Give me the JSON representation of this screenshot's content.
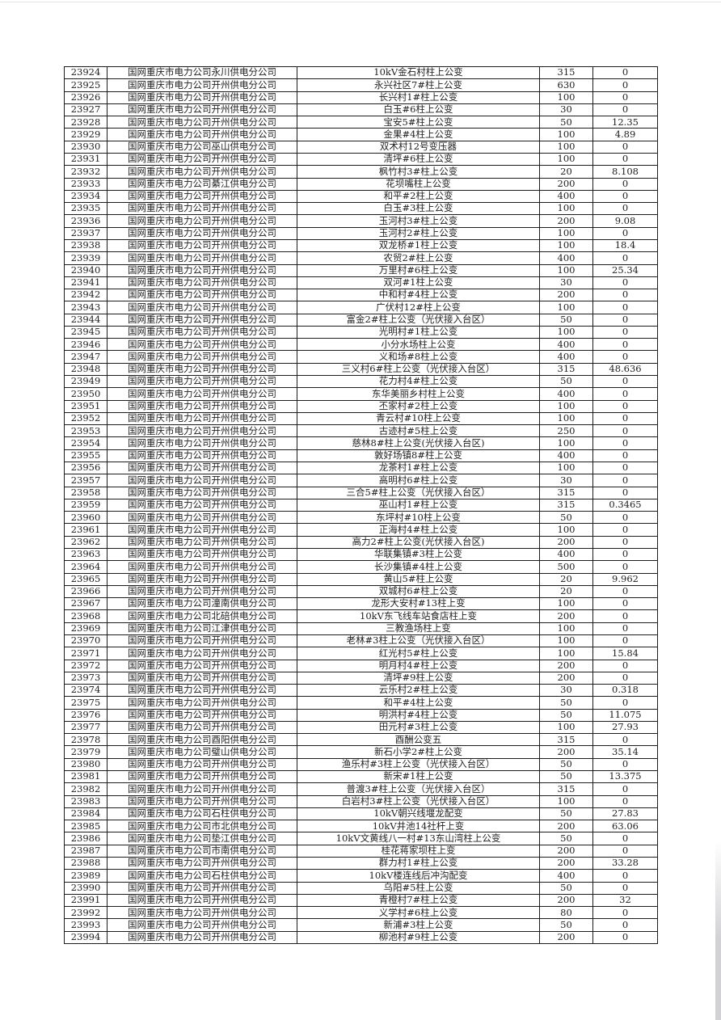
{
  "page": {
    "background_color": "#ffffff",
    "text_color": "#1f1f1f",
    "border_color": "#1c1c1c"
  },
  "table": {
    "rows": [
      [
        "23924",
        "国网重庆市电力公司永川供电分公司",
        "10kV金石村柱上公变",
        "315",
        "0"
      ],
      [
        "23925",
        "国网重庆市电力公司开州供电分公司",
        "永兴社区7#柱上公变",
        "630",
        "0"
      ],
      [
        "23926",
        "国网重庆市电力公司开州供电分公司",
        "长兴村1#柱上公变",
        "100",
        "0"
      ],
      [
        "23927",
        "国网重庆市电力公司开州供电分公司",
        "白玉#6柱上公变",
        "30",
        "0"
      ],
      [
        "23928",
        "国网重庆市电力公司开州供电分公司",
        "宝安5#柱上公变",
        "50",
        "12.35"
      ],
      [
        "23929",
        "国网重庆市电力公司开州供电分公司",
        "金果#4柱上公变",
        "100",
        "4.89"
      ],
      [
        "23930",
        "国网重庆市电力公司巫山供电分公司",
        "双术村12号变压器",
        "100",
        "0"
      ],
      [
        "23931",
        "国网重庆市电力公司开州供电分公司",
        "清坪#6柱上公变",
        "100",
        "0"
      ],
      [
        "23932",
        "国网重庆市电力公司开州供电分公司",
        "枫竹村3#柱上公变",
        "20",
        "8.108"
      ],
      [
        "23933",
        "国网重庆市电力公司綦江供电分公司",
        "花坝嘴柱上公变",
        "200",
        "0"
      ],
      [
        "23934",
        "国网重庆市电力公司开州供电分公司",
        "和平#2柱上公变",
        "400",
        "0"
      ],
      [
        "23935",
        "国网重庆市电力公司开州供电分公司",
        "白玉#3柱上公变",
        "100",
        "0"
      ],
      [
        "23936",
        "国网重庆市电力公司开州供电分公司",
        "玉河村3#柱上公变",
        "200",
        "9.08"
      ],
      [
        "23937",
        "国网重庆市电力公司开州供电分公司",
        "玉河村2#柱上公变",
        "100",
        "0"
      ],
      [
        "23938",
        "国网重庆市电力公司开州供电分公司",
        "双龙桥#1柱上公变",
        "100",
        "18.4"
      ],
      [
        "23939",
        "国网重庆市电力公司开州供电分公司",
        "农贸2#柱上公变",
        "400",
        "0"
      ],
      [
        "23940",
        "国网重庆市电力公司开州供电分公司",
        "万里村#6柱上公变",
        "100",
        "25.34"
      ],
      [
        "23941",
        "国网重庆市电力公司开州供电分公司",
        "双河#1柱上公变",
        "30",
        "0"
      ],
      [
        "23942",
        "国网重庆市电力公司开州供电分公司",
        "中和村#4柱上公变",
        "200",
        "0"
      ],
      [
        "23943",
        "国网重庆市电力公司开州供电分公司",
        "广伏村12#柱上公变",
        "100",
        "0"
      ],
      [
        "23944",
        "国网重庆市电力公司开州供电分公司",
        "富金2#柱上公变（光伏接入台区）",
        "50",
        "0"
      ],
      [
        "23945",
        "国网重庆市电力公司开州供电分公司",
        "光明村#1柱上公变",
        "100",
        "0"
      ],
      [
        "23946",
        "国网重庆市电力公司开州供电分公司",
        "小分水场柱上公变",
        "400",
        "0"
      ],
      [
        "23947",
        "国网重庆市电力公司开州供电分公司",
        "义和场#8柱上公变",
        "400",
        "0"
      ],
      [
        "23948",
        "国网重庆市电力公司开州供电分公司",
        "三义村6#柱上公变（光伏接入台区）",
        "315",
        "48.636"
      ],
      [
        "23949",
        "国网重庆市电力公司开州供电分公司",
        "花力村4#柱上公变",
        "50",
        "0"
      ],
      [
        "23950",
        "国网重庆市电力公司开州供电分公司",
        "东华美丽乡村柱上公变",
        "400",
        "0"
      ],
      [
        "23951",
        "国网重庆市电力公司开州供电分公司",
        "丕家村#2柱上公变",
        "100",
        "0"
      ],
      [
        "23952",
        "国网重庆市电力公司开州供电分公司",
        "青云村#10柱上公变",
        "100",
        "0"
      ],
      [
        "23953",
        "国网重庆市电力公司开州供电分公司",
        "古迹村#5柱上公变",
        "250",
        "0"
      ],
      [
        "23954",
        "国网重庆市电力公司开州供电分公司",
        "慈林8#柱上公变(光伏接入台区)",
        "100",
        "0"
      ],
      [
        "23955",
        "国网重庆市电力公司开州供电分公司",
        "敦好场镇8#柱上公变",
        "400",
        "0"
      ],
      [
        "23956",
        "国网重庆市电力公司开州供电分公司",
        "龙茶村1#柱上公变",
        "100",
        "0"
      ],
      [
        "23957",
        "国网重庆市电力公司开州供电分公司",
        "高明村6#柱上公变",
        "30",
        "0"
      ],
      [
        "23958",
        "国网重庆市电力公司开州供电分公司",
        "三合5#柱上公变（光伏接入台区）",
        "315",
        "0"
      ],
      [
        "23959",
        "国网重庆市电力公司开州供电分公司",
        "巫山村1#柱上公变",
        "315",
        "0.3465"
      ],
      [
        "23960",
        "国网重庆市电力公司开州供电分公司",
        "东坪村#10柱上公变",
        "50",
        "0"
      ],
      [
        "23961",
        "国网重庆市电力公司开州供电分公司",
        "正海村4#柱上公变",
        "100",
        "0"
      ],
      [
        "23962",
        "国网重庆市电力公司开州供电分公司",
        "高力2#柱上公变(光伏接入台区)",
        "200",
        "0"
      ],
      [
        "23963",
        "国网重庆市电力公司开州供电分公司",
        "华联集镇#3柱上公变",
        "400",
        "0"
      ],
      [
        "23964",
        "国网重庆市电力公司开州供电分公司",
        "长沙集镇#4柱上公变",
        "500",
        "0"
      ],
      [
        "23965",
        "国网重庆市电力公司开州供电分公司",
        "黄山5#柱上公变",
        "20",
        "9.962"
      ],
      [
        "23966",
        "国网重庆市电力公司开州供电分公司",
        "双城村6#柱上公变",
        "20",
        "0"
      ],
      [
        "23967",
        "国网重庆市电力公司潼南供电分公司",
        "龙形大安村#13柱上变",
        "100",
        "0"
      ],
      [
        "23968",
        "国网重庆市电力公司北碚供电分公司",
        "10kV东飞线车站食店柱上变",
        "200",
        "0"
      ],
      [
        "23969",
        "国网重庆市电力公司江津供电分公司",
        "三教渔场柱上变",
        "100",
        "0"
      ],
      [
        "23970",
        "国网重庆市电力公司开州供电分公司",
        "老林#3柱上公变（光伏接入台区）",
        "100",
        "0"
      ],
      [
        "23971",
        "国网重庆市电力公司开州供电分公司",
        "红光村5#柱上公变",
        "100",
        "15.84"
      ],
      [
        "23972",
        "国网重庆市电力公司开州供电分公司",
        "明月村4#柱上公变",
        "200",
        "0"
      ],
      [
        "23973",
        "国网重庆市电力公司开州供电分公司",
        "清坪#9柱上公变",
        "200",
        "0"
      ],
      [
        "23974",
        "国网重庆市电力公司开州供电分公司",
        "云乐村2#柱上公变",
        "30",
        "0.318"
      ],
      [
        "23975",
        "国网重庆市电力公司开州供电分公司",
        "和平#4柱上公变",
        "50",
        "0"
      ],
      [
        "23976",
        "国网重庆市电力公司开州供电分公司",
        "明洪村#4柱上公变",
        "50",
        "11.075"
      ],
      [
        "23977",
        "国网重庆市电力公司开州供电分公司",
        "田元村#3柱上公变",
        "100",
        "27.93"
      ],
      [
        "23978",
        "国网重庆市电力公司酉阳供电分公司",
        "酉酬公变五",
        "315",
        "0"
      ],
      [
        "23979",
        "国网重庆市电力公司璧山供电分公司",
        "新石小学2#柱上公变",
        "200",
        "35.14"
      ],
      [
        "23980",
        "国网重庆市电力公司开州供电分公司",
        "渔乐村#3柱上公变（光伏接入台区）",
        "50",
        "0"
      ],
      [
        "23981",
        "国网重庆市电力公司开州供电分公司",
        "新宋#1柱上公变",
        "50",
        "13.375"
      ],
      [
        "23982",
        "国网重庆市电力公司开州供电分公司",
        "普渡3#柱上公变（光伏接入台区）",
        "315",
        "0"
      ],
      [
        "23983",
        "国网重庆市电力公司开州供电分公司",
        "白岩村3#柱上公变（光伏接入台区）",
        "100",
        "0"
      ],
      [
        "23984",
        "国网重庆市电力公司石柱供电分公司",
        "10kV朝兴线堰龙配变",
        "50",
        "27.83"
      ],
      [
        "23985",
        "国网重庆市电力公司市北供电分公司",
        "10kV井池14社杆上变",
        "200",
        "63.06"
      ],
      [
        "23986",
        "国网重庆市电力公司垫江供电分公司",
        "10kV文黄线八一村#13东山湾柱上公变",
        "50",
        "0"
      ],
      [
        "23987",
        "国网重庆市电力公司市南供电分公司",
        "桂花蒋家坝柱上变",
        "200",
        "0"
      ],
      [
        "23988",
        "国网重庆市电力公司开州供电分公司",
        "群力村1#柱上公变",
        "200",
        "33.28"
      ],
      [
        "23989",
        "国网重庆市电力公司石柱供电分公司",
        "10kV楼连线后冲沟配变",
        "400",
        "0"
      ],
      [
        "23990",
        "国网重庆市电力公司开州供电分公司",
        "乌阳#5柱上公变",
        "50",
        "0"
      ],
      [
        "23991",
        "国网重庆市电力公司开州供电分公司",
        "青橙村7#柱上公变",
        "200",
        "32"
      ],
      [
        "23992",
        "国网重庆市电力公司开州供电分公司",
        "义学村#6柱上公变",
        "80",
        "0"
      ],
      [
        "23993",
        "国网重庆市电力公司开州供电分公司",
        "新浦#3柱上公变",
        "50",
        "0"
      ],
      [
        "23994",
        "国网重庆市电力公司开州供电分公司",
        "柳池村#9柱上公变",
        "200",
        "0"
      ]
    ]
  }
}
